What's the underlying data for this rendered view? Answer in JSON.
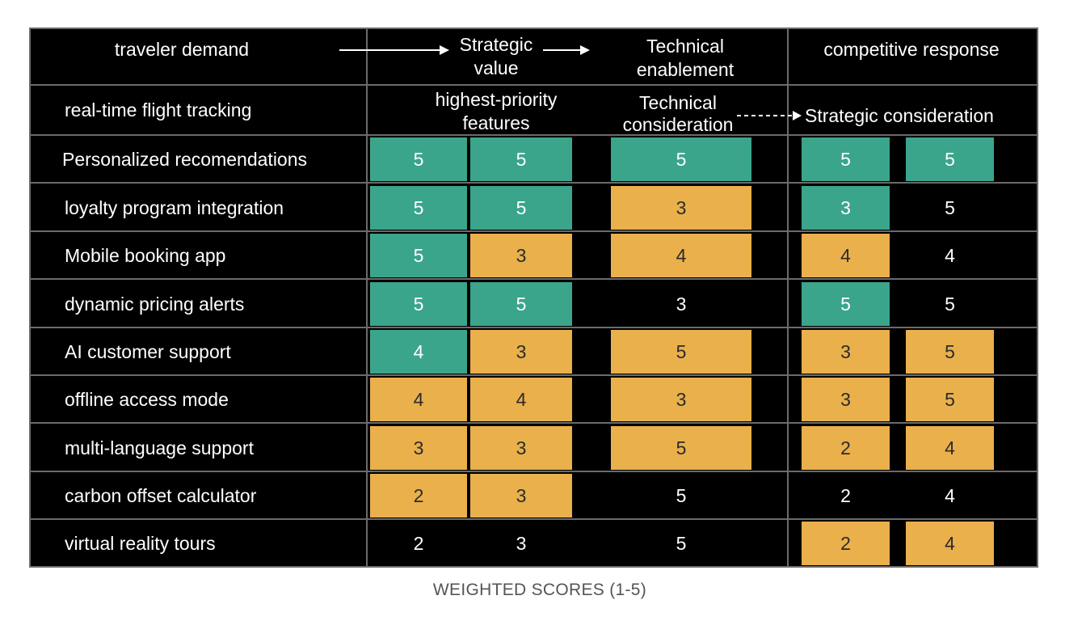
{
  "headers": {
    "col1": "traveler demand",
    "col2": "Strategic value",
    "col3": "Technical enablement",
    "col4": "competitive response",
    "row2_col1": "real-time flight tracking",
    "row2_col2": "highest-priority features",
    "row2_col3": "Technical consideration",
    "row2_col4": "Strategic consideration"
  },
  "rows": [
    {
      "label": "Personalized recomendations",
      "scores": [
        "5",
        "5",
        "5",
        "5",
        "5"
      ],
      "colors": [
        "#3aa58a",
        "#3aa58a",
        "#3aa58a",
        "#3aa58a",
        "#3aa58a"
      ]
    },
    {
      "label": "loyalty program integration",
      "scores": [
        "5",
        "5",
        "3",
        "3",
        "5"
      ],
      "colors": [
        "#3aa58a",
        "#3aa58a",
        "#e9b04b",
        "#3aa58a",
        "none"
      ]
    },
    {
      "label": "Mobile booking  app",
      "scores": [
        "5",
        "3",
        "4",
        "4",
        "4"
      ],
      "colors": [
        "#3aa58a",
        "#e9b04b",
        "#e9b04b",
        "#e9b04b",
        "none"
      ]
    },
    {
      "label": "dynamic pricing alerts",
      "scores": [
        "5",
        "5",
        "3",
        "5",
        "5"
      ],
      "colors": [
        "#3aa58a",
        "#3aa58a",
        "none",
        "#3aa58a",
        "none"
      ]
    },
    {
      "label": "AI customer support",
      "scores": [
        "4",
        "3",
        "5",
        "3",
        "5"
      ],
      "colors": [
        "#3aa58a",
        "#e9b04b",
        "#e9b04b",
        "#e9b04b",
        "#e9b04b"
      ]
    },
    {
      "label": "offline access mode",
      "scores": [
        "4",
        "4",
        "3",
        "3",
        "5"
      ],
      "colors": [
        "#e9b04b",
        "#e9b04b",
        "#e9b04b",
        "#e9b04b",
        "#e9b04b"
      ]
    },
    {
      "label": "multi-language support",
      "scores": [
        "3",
        "3",
        "5",
        "2",
        "4"
      ],
      "colors": [
        "#e9b04b",
        "#e9b04b",
        "#e9b04b",
        "#e9b04b",
        "#e9b04b"
      ]
    },
    {
      "label": "carbon offset calculator",
      "scores": [
        "2",
        "3",
        "5",
        "2",
        "4"
      ],
      "colors": [
        "#e9b04b",
        "#e9b04b",
        "none",
        "none",
        "none"
      ]
    },
    {
      "label": "virtual reality tours",
      "scores": [
        "2",
        "3",
        "5",
        "2",
        "4"
      ],
      "colors": [
        "none",
        "none",
        "none",
        "#e9b04b",
        "#e9b04b"
      ]
    }
  ],
  "footer": "WEIGHTED SCORES (1-5)"
}
